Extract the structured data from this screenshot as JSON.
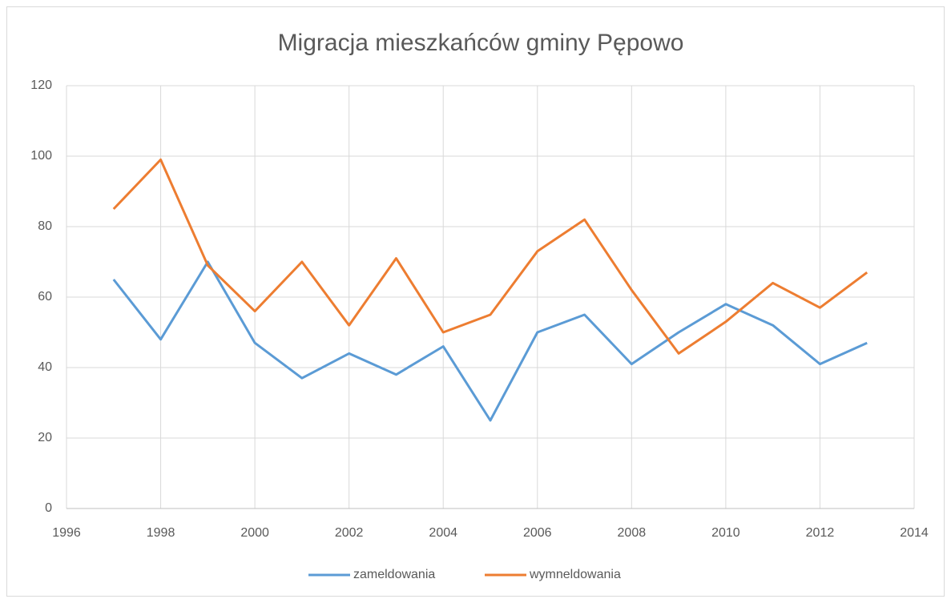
{
  "chart_data": {
    "type": "line",
    "title": "Migracja mieszkańców gminy Pępowo",
    "x": [
      1997,
      1998,
      1999,
      2000,
      2001,
      2002,
      2003,
      2004,
      2005,
      2006,
      2007,
      2008,
      2009,
      2010,
      2011,
      2012,
      2013
    ],
    "series": [
      {
        "name": "zameldowania",
        "color": "#5b9bd5",
        "values": [
          65,
          48,
          70,
          47,
          37,
          44,
          38,
          46,
          25,
          50,
          55,
          41,
          50,
          58,
          52,
          41,
          47
        ]
      },
      {
        "name": "wymneldowania",
        "color": "#ed7d31",
        "values": [
          85,
          99,
          69,
          56,
          70,
          52,
          71,
          50,
          55,
          73,
          82,
          62,
          44,
          53,
          64,
          57,
          67
        ]
      }
    ],
    "xlim": [
      1996,
      2014
    ],
    "xticks": [
      1996,
      1998,
      2000,
      2002,
      2004,
      2006,
      2008,
      2010,
      2012,
      2014
    ],
    "ylim": [
      0,
      120
    ],
    "yticks": [
      0,
      20,
      40,
      60,
      80,
      100,
      120
    ],
    "grid": true,
    "legend": "bottom"
  }
}
